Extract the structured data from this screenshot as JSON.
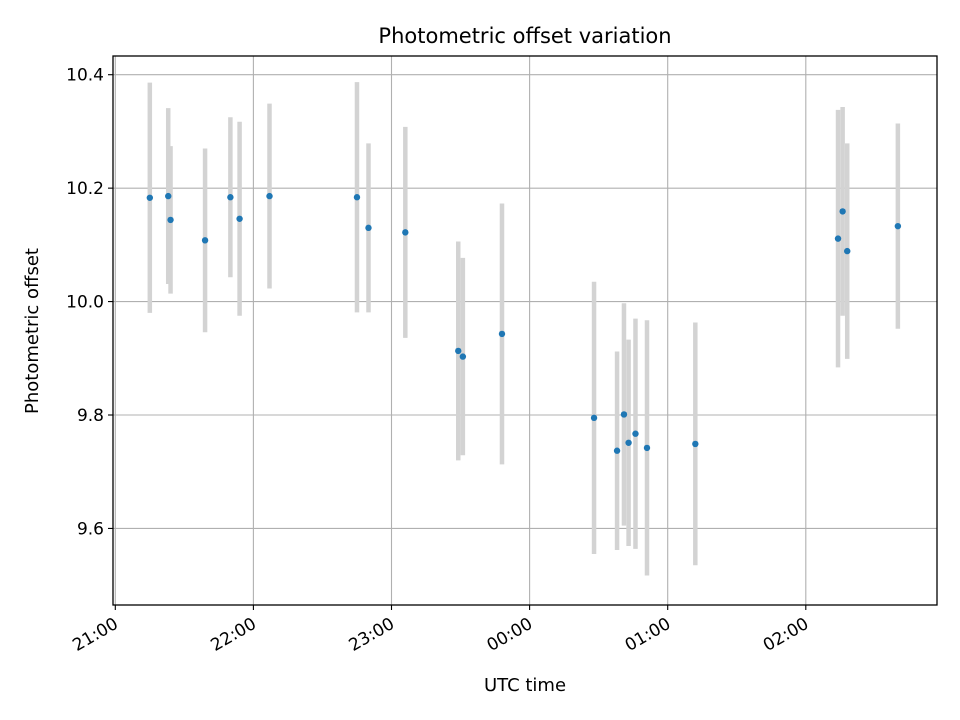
{
  "chart_data": {
    "type": "scatter",
    "title": "Photometric offset variation",
    "xlabel": "UTC time",
    "ylabel": "Photometric offset",
    "x_tick_labels": [
      "21:00",
      "22:00",
      "23:00",
      "00:00",
      "01:00",
      "02:00"
    ],
    "y_tick_labels": [
      "9.6",
      "9.8",
      "10.0",
      "10.2",
      "10.4"
    ],
    "y_ticks": [
      9.6,
      9.8,
      10.0,
      10.2,
      10.4
    ],
    "x_ticks": [
      "21:00",
      "22:00",
      "23:00",
      "00:00",
      "01:00",
      "02:00"
    ],
    "xlim": [
      "20:59",
      "26:57"
    ],
    "ylim": [
      9.465,
      10.433
    ],
    "grid": true,
    "colors": {
      "points": "#1f77b4",
      "error_bars": "#d3d3d3",
      "grid": "#b0b0b0"
    },
    "points": [
      {
        "x": "21:15",
        "y": 10.183,
        "err": 0.203
      },
      {
        "x": "21:23",
        "y": 10.186,
        "err": 0.155
      },
      {
        "x": "21:24",
        "y": 10.144,
        "err": 0.13
      },
      {
        "x": "21:39",
        "y": 10.108,
        "err": 0.162
      },
      {
        "x": "21:50",
        "y": 10.184,
        "err": 0.141
      },
      {
        "x": "21:54",
        "y": 10.146,
        "err": 0.171
      },
      {
        "x": "22:07",
        "y": 10.186,
        "err": 0.163
      },
      {
        "x": "22:45",
        "y": 10.184,
        "err": 0.203
      },
      {
        "x": "22:50",
        "y": 10.13,
        "err": 0.149
      },
      {
        "x": "23:06",
        "y": 10.122,
        "err": 0.186
      },
      {
        "x": "23:29",
        "y": 9.913,
        "err": 0.193
      },
      {
        "x": "23:31",
        "y": 9.903,
        "err": 0.174
      },
      {
        "x": "23:48",
        "y": 9.943,
        "err": 0.23
      },
      {
        "x": "00:28",
        "y": 9.795,
        "err": 0.24
      },
      {
        "x": "00:38",
        "y": 9.737,
        "err": 0.175
      },
      {
        "x": "00:41",
        "y": 9.801,
        "err": 0.196
      },
      {
        "x": "00:43",
        "y": 9.751,
        "err": 0.182
      },
      {
        "x": "00:46",
        "y": 9.767,
        "err": 0.203
      },
      {
        "x": "00:51",
        "y": 9.742,
        "err": 0.225
      },
      {
        "x": "01:12",
        "y": 9.749,
        "err": 0.214
      },
      {
        "x": "02:14",
        "y": 10.111,
        "err": 0.227
      },
      {
        "x": "02:16",
        "y": 10.159,
        "err": 0.184
      },
      {
        "x": "02:18",
        "y": 10.089,
        "err": 0.19
      },
      {
        "x": "02:40",
        "y": 10.133,
        "err": 0.181
      }
    ]
  }
}
